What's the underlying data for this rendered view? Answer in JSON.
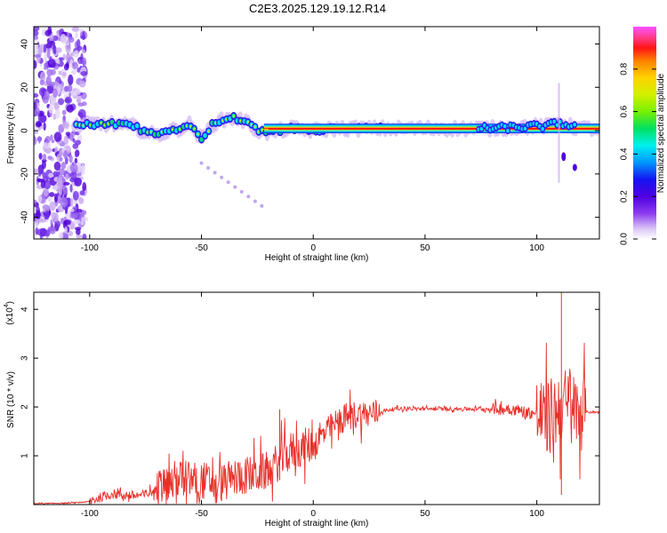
{
  "title": "C2E3.2025.129.19.12.R14",
  "colors": {
    "snr_line": "#e8302a",
    "spectrum_band": "#ff1a1a",
    "frame": "#000000"
  },
  "chart_data": [
    {
      "type": "heatmap",
      "xlabel": "Height of straight line (km)",
      "ylabel": "Frequency (Hz)",
      "xlim": [
        -125,
        128
      ],
      "ylim": [
        -50,
        48
      ],
      "xticks": [
        -100,
        -50,
        0,
        50,
        100
      ],
      "yticks": [
        -40,
        -20,
        0,
        20,
        40
      ],
      "colorbar": {
        "label": "Normalized spectral amplitude",
        "range": [
          0,
          1
        ],
        "ticks": [
          "0.0",
          "0.2",
          "0.4",
          "0.6",
          "0.8"
        ],
        "colormap": [
          "#ffffff",
          "#c8a8f0",
          "#8c3cf0",
          "#5a00e8",
          "#1414f0",
          "#0096ff",
          "#00f0f0",
          "#00e060",
          "#78f000",
          "#d2f000",
          "#ffd200",
          "#ff8000",
          "#ff1414",
          "#ff3c8c",
          "#ff50ff"
        ]
      },
      "ridge": {
        "note": "dominant spectral ridge near 0 Hz",
        "x": [
          -107,
          -100,
          -90,
          -80,
          -75,
          -70,
          -60,
          -55,
          -50,
          -45,
          -40,
          -35,
          -30,
          -25,
          -20,
          -10,
          0,
          10,
          20,
          40,
          60,
          80,
          100,
          105,
          110,
          115,
          120,
          128
        ],
        "y": [
          2,
          3,
          3,
          2,
          -1,
          -2,
          1,
          3,
          -4,
          3,
          5,
          6,
          4,
          0,
          -1,
          1,
          0,
          1,
          1,
          1,
          1,
          1,
          2,
          2,
          4,
          2,
          1,
          1
        ]
      }
    },
    {
      "type": "line",
      "xlabel": "Height of straight line (km)",
      "ylabel": "SNR (10 * v/v)",
      "y_multiplier_label": "(x10",
      "y_multiplier_exp": "4",
      "xlim": [
        -125,
        128
      ],
      "ylim": [
        0,
        4.35
      ],
      "xticks": [
        -100,
        -50,
        0,
        50,
        100
      ],
      "yticks": [
        1,
        2,
        3,
        4
      ],
      "series": [
        {
          "x": [
            -125,
            -110,
            -100,
            -95,
            -90,
            -85,
            -80,
            -75,
            -70,
            -65,
            -60,
            -55,
            -50,
            -45,
            -40,
            -35,
            -30,
            -25,
            -20,
            -15,
            -10,
            -5,
            0,
            5,
            10,
            15,
            20,
            25,
            30,
            35,
            40,
            50,
            60,
            70,
            80,
            90,
            95,
            100,
            105,
            108,
            110,
            112,
            115,
            118,
            120,
            128
          ],
          "y": [
            0.02,
            0.03,
            0.06,
            0.15,
            0.22,
            0.2,
            0.18,
            0.2,
            0.3,
            0.45,
            0.55,
            0.5,
            0.5,
            0.45,
            0.45,
            0.55,
            0.6,
            0.62,
            0.7,
            0.9,
            1.1,
            1.15,
            1.25,
            1.45,
            1.65,
            1.8,
            1.85,
            1.85,
            1.9,
            1.95,
            1.97,
            1.96,
            1.96,
            1.96,
            1.96,
            1.95,
            1.9,
            1.85,
            1.75,
            1.9,
            2.0,
            2.05,
            1.95,
            1.9,
            1.9,
            1.89
          ]
        }
      ]
    }
  ]
}
